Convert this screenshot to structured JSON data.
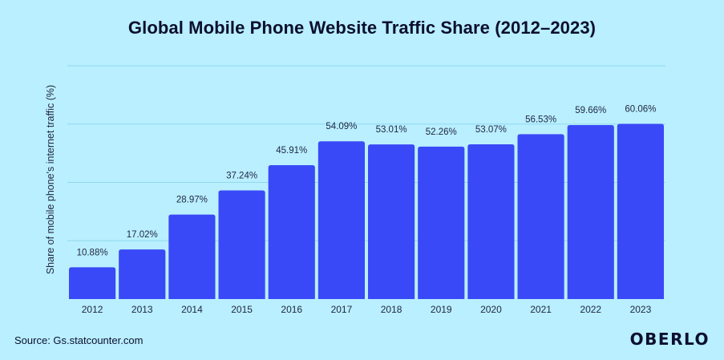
{
  "chart_data": {
    "type": "bar",
    "title": "Global Mobile Phone Website Traffic Share (2012–2023)",
    "xlabel": "",
    "ylabel": "Share of mobile phone's internet traffic (%)",
    "categories": [
      "2012",
      "2013",
      "2014",
      "2015",
      "2016",
      "2017",
      "2018",
      "2019",
      "2020",
      "2021",
      "2022",
      "2023"
    ],
    "values": [
      10.88,
      17.02,
      28.97,
      37.24,
      45.91,
      54.09,
      53.01,
      52.26,
      53.07,
      56.53,
      59.66,
      60.06
    ],
    "data_labels": [
      "10.88%",
      "17.02%",
      "28.97%",
      "37.24%",
      "45.91%",
      "54.09%",
      "53.01%",
      "52.26%",
      "53.07%",
      "56.53%",
      "59.66%",
      "60.06%"
    ],
    "ylim": [
      0,
      80
    ],
    "grid": true,
    "bar_color": "#3a49f7",
    "grid_color": "#8fd8ee"
  },
  "footer": {
    "source": "Source: Gs.statcounter.com",
    "logo": "OBERLO"
  },
  "colors": {
    "background": "#b9efff",
    "text": "#0c0f2e"
  }
}
